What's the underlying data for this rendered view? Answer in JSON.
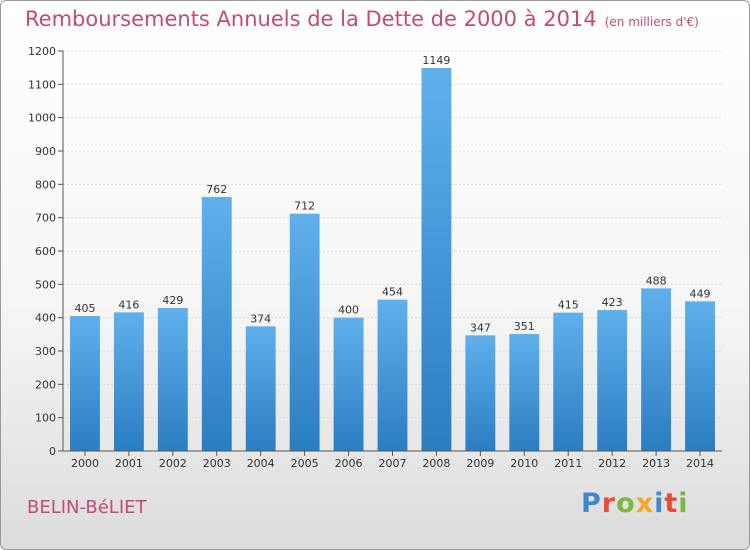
{
  "chart_data": {
    "type": "bar",
    "title": "Remboursements Annuels de la Dette de 2000 à 2014",
    "unit_label": "(en milliers d'€)",
    "categories": [
      "2000",
      "2001",
      "2002",
      "2003",
      "2004",
      "2005",
      "2006",
      "2007",
      "2008",
      "2009",
      "2010",
      "2011",
      "2012",
      "2013",
      "2014"
    ],
    "values": [
      405,
      416,
      429,
      762,
      374,
      712,
      400,
      454,
      1149,
      347,
      351,
      415,
      423,
      488,
      449
    ],
    "ylim": [
      0,
      1200
    ],
    "yticks": [
      0,
      100,
      200,
      300,
      400,
      500,
      600,
      700,
      800,
      900,
      1000,
      1100,
      1200
    ],
    "grid": true,
    "xlabel": "",
    "ylabel": ""
  },
  "footer": {
    "city": "BELIN-BéLIET",
    "logo": "Proxiti"
  },
  "colors": {
    "bar_top": "#5fb0ec",
    "bar_bottom": "#2b7dc2",
    "title": "#c44a78",
    "logo": [
      "#3f88cc",
      "#e94b36",
      "#7ab93c",
      "#f5a623",
      "#3f88cc",
      "#e94b36",
      "#7ab93c"
    ]
  }
}
